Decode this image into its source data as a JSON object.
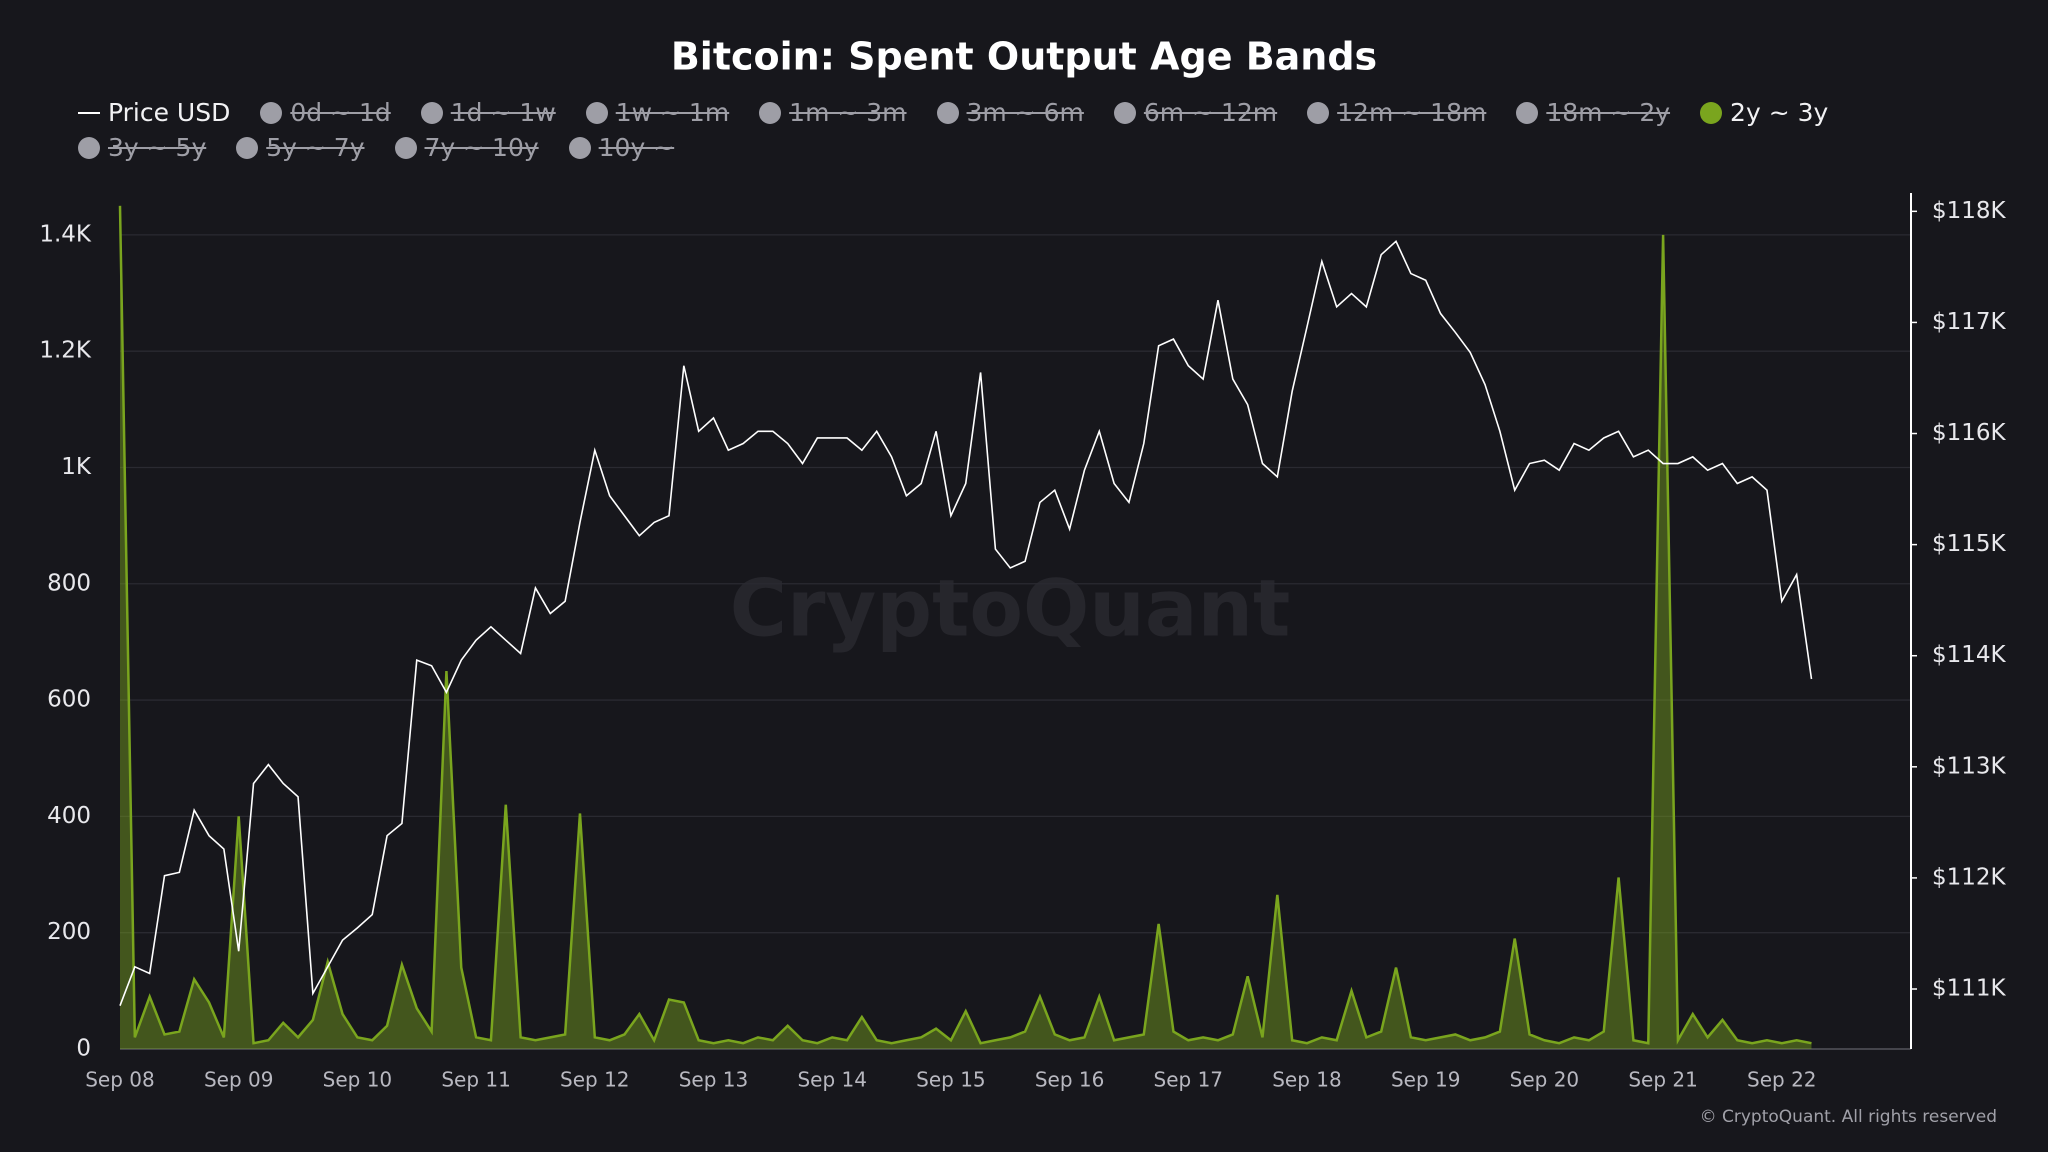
{
  "chart_data": {
    "type": "line",
    "title": "Bitcoin: Spent Output Age Bands",
    "watermark": "CryptoQuant",
    "credit": "© CryptoQuant. All rights reserved",
    "categories": [
      "Sep 08",
      null,
      null,
      null,
      null,
      null,
      null,
      null,
      "Sep 09",
      null,
      null,
      null,
      null,
      null,
      null,
      null,
      "Sep 10",
      null,
      null,
      null,
      null,
      null,
      null,
      null,
      "Sep 11",
      null,
      null,
      null,
      null,
      null,
      null,
      null,
      "Sep 12",
      null,
      null,
      null,
      null,
      null,
      null,
      null,
      "Sep 13",
      null,
      null,
      null,
      null,
      null,
      null,
      null,
      "Sep 14",
      null,
      null,
      null,
      null,
      null,
      null,
      null,
      "Sep 15",
      null,
      null,
      null,
      null,
      null,
      null,
      null,
      "Sep 16",
      null,
      null,
      null,
      null,
      null,
      null,
      null,
      "Sep 17",
      null,
      null,
      null,
      null,
      null,
      null,
      null,
      "Sep 18",
      null,
      null,
      null,
      null,
      null,
      null,
      null,
      "Sep 19",
      null,
      null,
      null,
      null,
      null,
      null,
      null,
      "Sep 20",
      null,
      null,
      null,
      null,
      null,
      null,
      null,
      "Sep 21",
      null,
      null,
      null,
      null,
      null,
      null,
      null,
      "Sep 22",
      null,
      null
    ],
    "ylim": [
      0,
      1472
    ],
    "yticks": [
      0,
      200,
      400,
      600,
      800,
      {
        "value": 1000,
        "label": "1K"
      },
      {
        "value": 1200,
        "label": "1.2K"
      },
      {
        "value": 1400,
        "label": "1.4K"
      }
    ],
    "y2lim": [
      110460,
      118165
    ],
    "y2ticks": [
      {
        "value": 111000,
        "label": "$111K"
      },
      {
        "value": 112000,
        "label": "$112K"
      },
      {
        "value": 113000,
        "label": "$113K"
      },
      {
        "value": 114000,
        "label": "$114K"
      },
      {
        "value": 115000,
        "label": "$115K"
      },
      {
        "value": 116000,
        "label": "$116K"
      },
      {
        "value": 117000,
        "label": "$117K"
      },
      {
        "value": 118000,
        "label": "$118K"
      }
    ],
    "grid": true,
    "series": [
      {
        "name": "Price USD",
        "type": "line",
        "axis": "y2",
        "color": "#ffffff",
        "values": [
          110850,
          111200,
          111140,
          112020,
          112050,
          112610,
          112380,
          112260,
          111340,
          112850,
          113020,
          112850,
          112730,
          110960,
          111200,
          111440,
          111550,
          111670,
          112380,
          112490,
          113960,
          113910,
          113670,
          113960,
          114140,
          114260,
          114140,
          114020,
          114610,
          114380,
          114490,
          115200,
          115850,
          115440,
          115260,
          115080,
          115200,
          115260,
          116610,
          116020,
          116140,
          115850,
          115910,
          116020,
          116020,
          115910,
          115730,
          115960,
          115960,
          115960,
          115850,
          116020,
          115790,
          115440,
          115550,
          116020,
          115260,
          115550,
          116550,
          114960,
          114790,
          114850,
          115380,
          115490,
          115140,
          115670,
          116020,
          115550,
          115380,
          115910,
          116790,
          116850,
          116610,
          116490,
          117200,
          116490,
          116260,
          115730,
          115610,
          116380,
          116960,
          117550,
          117140,
          117260,
          117140,
          117610,
          117730,
          117440,
          117380,
          117080,
          116910,
          116730,
          116440,
          116020,
          115490,
          115730,
          115760,
          115670,
          115910,
          115850,
          115960,
          116020,
          115790,
          115850,
          115730,
          115730,
          115790,
          115670,
          115730,
          115550,
          115610,
          115490,
          114490,
          114730,
          113790
        ]
      },
      {
        "name": "0d ~ 1d",
        "hidden": true,
        "color": "#9e9ea6"
      },
      {
        "name": "1d ~ 1w",
        "hidden": true,
        "color": "#9e9ea6"
      },
      {
        "name": "1w ~ 1m",
        "hidden": true,
        "color": "#9e9ea6"
      },
      {
        "name": "1m ~ 3m",
        "hidden": true,
        "color": "#9e9ea6"
      },
      {
        "name": "3m ~ 6m",
        "hidden": true,
        "color": "#9e9ea6"
      },
      {
        "name": "6m ~ 12m",
        "hidden": true,
        "color": "#9e9ea6"
      },
      {
        "name": "12m ~ 18m",
        "hidden": true,
        "color": "#9e9ea6"
      },
      {
        "name": "18m ~ 2y",
        "hidden": true,
        "color": "#9e9ea6"
      },
      {
        "name": "2y ~ 3y",
        "type": "area",
        "color": "#7aa51e",
        "values": [
          1450,
          20,
          90,
          25,
          30,
          120,
          80,
          20,
          400,
          10,
          15,
          45,
          20,
          50,
          150,
          60,
          20,
          15,
          40,
          145,
          70,
          30,
          650,
          140,
          20,
          15,
          420,
          20,
          15,
          20,
          25,
          405,
          20,
          15,
          25,
          60,
          15,
          85,
          80,
          15,
          10,
          15,
          10,
          20,
          15,
          40,
          15,
          10,
          20,
          15,
          55,
          15,
          10,
          15,
          20,
          35,
          15,
          65,
          10,
          15,
          20,
          30,
          90,
          25,
          15,
          20,
          90,
          15,
          20,
          25,
          215,
          30,
          15,
          20,
          15,
          25,
          125,
          20,
          265,
          15,
          10,
          20,
          15,
          100,
          20,
          30,
          140,
          20,
          15,
          20,
          25,
          15,
          20,
          30,
          190,
          25,
          15,
          10,
          20,
          15,
          30,
          295,
          15,
          10,
          1400,
          15,
          60,
          20,
          50,
          15,
          10,
          15,
          10,
          15,
          10
        ]
      },
      {
        "name": "3y ~ 5y",
        "hidden": true,
        "color": "#9e9ea6"
      },
      {
        "name": "5y ~ 7y",
        "hidden": true,
        "color": "#9e9ea6"
      },
      {
        "name": "7y ~ 10y",
        "hidden": true,
        "color": "#9e9ea6"
      },
      {
        "name": "10y ~",
        "hidden": true,
        "color": "#9e9ea6"
      }
    ]
  }
}
